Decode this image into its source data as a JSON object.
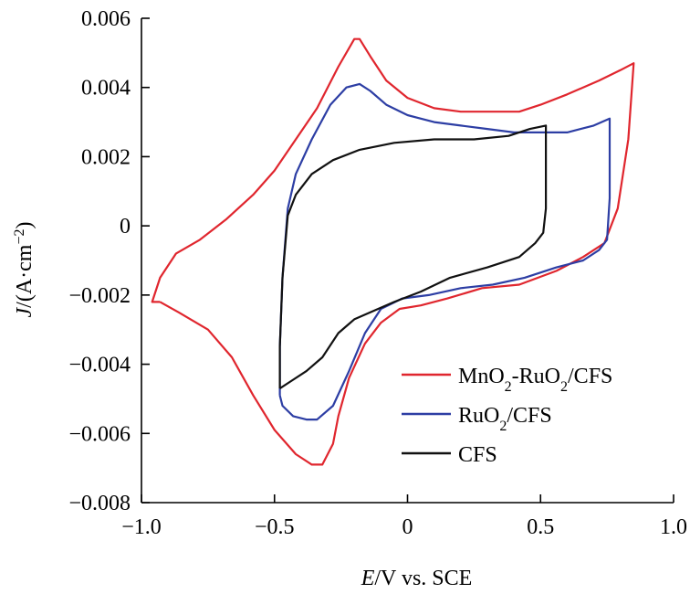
{
  "chart_data": {
    "type": "line",
    "title": "",
    "xlabel_italic": "E",
    "xlabel_rest": "/V vs. SCE",
    "ylabel_italic": "J",
    "ylabel_rest_pre": "/(A·cm",
    "ylabel_sup": "−2",
    "ylabel_rest_post": ")",
    "xlim": [
      -1.0,
      1.0
    ],
    "ylim": [
      -0.008,
      0.006
    ],
    "xticks": [
      -1.0,
      -0.5,
      0,
      0.5,
      1.0
    ],
    "xtick_labels": [
      "−1.0",
      "−0.5",
      "0",
      "0.5",
      "1.0"
    ],
    "yticks": [
      -0.008,
      -0.006,
      -0.004,
      -0.002,
      0,
      0.002,
      0.004,
      0.006
    ],
    "ytick_labels": [
      "−0.008",
      "−0.006",
      "−0.004",
      "−0.002",
      "0",
      "0.002",
      "0.004",
      "0.006"
    ],
    "grid": false,
    "legend_position": "bottom-right",
    "series": [
      {
        "name": "MnO2-RuO2/CFS",
        "legend_parts": [
          [
            "MnO",
            false
          ],
          [
            "2",
            true
          ],
          [
            "-RuO",
            false
          ],
          [
            "2",
            true
          ],
          [
            "/CFS",
            false
          ]
        ],
        "color": "#e0262e",
        "points": [
          [
            -0.93,
            -0.0022
          ],
          [
            -0.96,
            -0.0022
          ],
          [
            -0.93,
            -0.0015
          ],
          [
            -0.87,
            -0.0008
          ],
          [
            -0.78,
            -0.0004
          ],
          [
            -0.68,
            0.0002
          ],
          [
            -0.58,
            0.0009
          ],
          [
            -0.5,
            0.0016
          ],
          [
            -0.42,
            0.0025
          ],
          [
            -0.34,
            0.0034
          ],
          [
            -0.26,
            0.0046
          ],
          [
            -0.2,
            0.0054
          ],
          [
            -0.18,
            0.0054
          ],
          [
            -0.14,
            0.0049
          ],
          [
            -0.08,
            0.0042
          ],
          [
            0.0,
            0.0037
          ],
          [
            0.1,
            0.0034
          ],
          [
            0.2,
            0.0033
          ],
          [
            0.3,
            0.0033
          ],
          [
            0.42,
            0.0033
          ],
          [
            0.5,
            0.0035
          ],
          [
            0.6,
            0.0038
          ],
          [
            0.72,
            0.0042
          ],
          [
            0.8,
            0.0045
          ],
          [
            0.85,
            0.0047
          ],
          [
            0.83,
            0.0025
          ],
          [
            0.79,
            0.0005
          ],
          [
            0.74,
            -0.0005
          ],
          [
            0.66,
            -0.0009
          ],
          [
            0.56,
            -0.0013
          ],
          [
            0.42,
            -0.0017
          ],
          [
            0.28,
            -0.0018
          ],
          [
            0.15,
            -0.0021
          ],
          [
            0.05,
            -0.0023
          ],
          [
            -0.03,
            -0.0024
          ],
          [
            -0.1,
            -0.0028
          ],
          [
            -0.16,
            -0.0034
          ],
          [
            -0.22,
            -0.0044
          ],
          [
            -0.26,
            -0.0055
          ],
          [
            -0.28,
            -0.0063
          ],
          [
            -0.32,
            -0.0069
          ],
          [
            -0.36,
            -0.0069
          ],
          [
            -0.42,
            -0.0066
          ],
          [
            -0.5,
            -0.0059
          ],
          [
            -0.58,
            -0.0049
          ],
          [
            -0.66,
            -0.0038
          ],
          [
            -0.75,
            -0.003
          ],
          [
            -0.86,
            -0.0025
          ],
          [
            -0.93,
            -0.0022
          ]
        ]
      },
      {
        "name": "RuO2/CFS",
        "legend_parts": [
          [
            "RuO",
            false
          ],
          [
            "2",
            true
          ],
          [
            "/CFS",
            false
          ]
        ],
        "color": "#2d3ea4",
        "points": [
          [
            -0.48,
            -0.0049
          ],
          [
            -0.48,
            -0.0035
          ],
          [
            -0.47,
            -0.0015
          ],
          [
            -0.45,
            0.0005
          ],
          [
            -0.42,
            0.0015
          ],
          [
            -0.36,
            0.0025
          ],
          [
            -0.29,
            0.0035
          ],
          [
            -0.23,
            0.004
          ],
          [
            -0.18,
            0.0041
          ],
          [
            -0.14,
            0.0039
          ],
          [
            -0.08,
            0.0035
          ],
          [
            0.0,
            0.0032
          ],
          [
            0.1,
            0.003
          ],
          [
            0.2,
            0.0029
          ],
          [
            0.3,
            0.0028
          ],
          [
            0.4,
            0.0027
          ],
          [
            0.5,
            0.0027
          ],
          [
            0.6,
            0.0027
          ],
          [
            0.7,
            0.0029
          ],
          [
            0.76,
            0.0031
          ],
          [
            0.76,
            0.0008
          ],
          [
            0.75,
            -0.0004
          ],
          [
            0.72,
            -0.0007
          ],
          [
            0.66,
            -0.001
          ],
          [
            0.56,
            -0.0012
          ],
          [
            0.44,
            -0.0015
          ],
          [
            0.32,
            -0.0017
          ],
          [
            0.2,
            -0.0018
          ],
          [
            0.08,
            -0.002
          ],
          [
            -0.02,
            -0.0021
          ],
          [
            -0.1,
            -0.0024
          ],
          [
            -0.16,
            -0.0031
          ],
          [
            -0.22,
            -0.0042
          ],
          [
            -0.28,
            -0.0052
          ],
          [
            -0.34,
            -0.0056
          ],
          [
            -0.38,
            -0.0056
          ],
          [
            -0.43,
            -0.0055
          ],
          [
            -0.47,
            -0.0052
          ],
          [
            -0.48,
            -0.0049
          ]
        ]
      },
      {
        "name": "CFS",
        "legend_parts": [
          [
            "CFS",
            false
          ]
        ],
        "color": "#111111",
        "points": [
          [
            -0.48,
            -0.0047
          ],
          [
            -0.48,
            -0.0035
          ],
          [
            -0.47,
            -0.0015
          ],
          [
            -0.45,
            0.0003
          ],
          [
            -0.42,
            0.0009
          ],
          [
            -0.36,
            0.0015
          ],
          [
            -0.28,
            0.0019
          ],
          [
            -0.18,
            0.0022
          ],
          [
            -0.05,
            0.0024
          ],
          [
            0.1,
            0.0025
          ],
          [
            0.25,
            0.0025
          ],
          [
            0.38,
            0.0026
          ],
          [
            0.46,
            0.0028
          ],
          [
            0.52,
            0.0029
          ],
          [
            0.52,
            0.002
          ],
          [
            0.52,
            0.0005
          ],
          [
            0.51,
            -0.0002
          ],
          [
            0.48,
            -0.0005
          ],
          [
            0.42,
            -0.0009
          ],
          [
            0.3,
            -0.0012
          ],
          [
            0.16,
            -0.0015
          ],
          [
            0.05,
            -0.0019
          ],
          [
            -0.05,
            -0.0022
          ],
          [
            -0.14,
            -0.0025
          ],
          [
            -0.2,
            -0.0027
          ],
          [
            -0.26,
            -0.0031
          ],
          [
            -0.32,
            -0.0038
          ],
          [
            -0.38,
            -0.0042
          ],
          [
            -0.44,
            -0.0045
          ],
          [
            -0.48,
            -0.0047
          ]
        ]
      }
    ]
  }
}
